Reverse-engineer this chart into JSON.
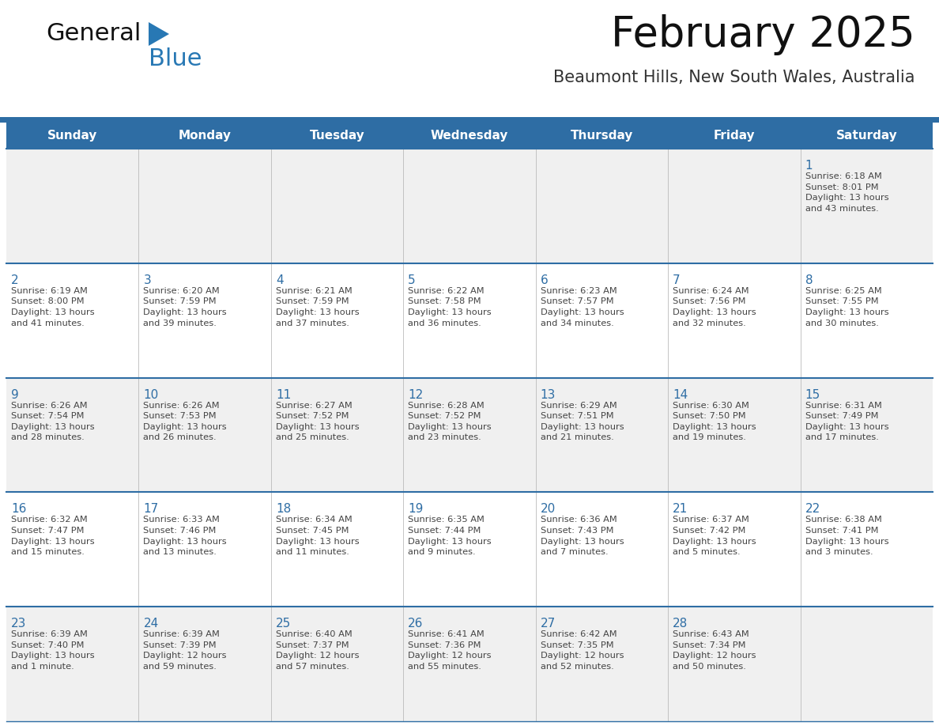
{
  "title": "February 2025",
  "subtitle": "Beaumont Hills, New South Wales, Australia",
  "header_bg_color": "#2E6DA4",
  "header_text_color": "#FFFFFF",
  "cell_bg_color_odd": "#F0F0F0",
  "cell_bg_color_even": "#FFFFFF",
  "day_names": [
    "Sunday",
    "Monday",
    "Tuesday",
    "Wednesday",
    "Thursday",
    "Friday",
    "Saturday"
  ],
  "title_color": "#111111",
  "subtitle_color": "#333333",
  "day_number_color": "#2E6DA4",
  "cell_text_color": "#444444",
  "divider_color": "#2E6DA4",
  "logo_black_color": "#111111",
  "logo_blue_color": "#2878B4",
  "weeks": [
    [
      {
        "day": 0,
        "text": ""
      },
      {
        "day": 0,
        "text": ""
      },
      {
        "day": 0,
        "text": ""
      },
      {
        "day": 0,
        "text": ""
      },
      {
        "day": 0,
        "text": ""
      },
      {
        "day": 0,
        "text": ""
      },
      {
        "day": 1,
        "text": "Sunrise: 6:18 AM\nSunset: 8:01 PM\nDaylight: 13 hours\nand 43 minutes."
      }
    ],
    [
      {
        "day": 2,
        "text": "Sunrise: 6:19 AM\nSunset: 8:00 PM\nDaylight: 13 hours\nand 41 minutes."
      },
      {
        "day": 3,
        "text": "Sunrise: 6:20 AM\nSunset: 7:59 PM\nDaylight: 13 hours\nand 39 minutes."
      },
      {
        "day": 4,
        "text": "Sunrise: 6:21 AM\nSunset: 7:59 PM\nDaylight: 13 hours\nand 37 minutes."
      },
      {
        "day": 5,
        "text": "Sunrise: 6:22 AM\nSunset: 7:58 PM\nDaylight: 13 hours\nand 36 minutes."
      },
      {
        "day": 6,
        "text": "Sunrise: 6:23 AM\nSunset: 7:57 PM\nDaylight: 13 hours\nand 34 minutes."
      },
      {
        "day": 7,
        "text": "Sunrise: 6:24 AM\nSunset: 7:56 PM\nDaylight: 13 hours\nand 32 minutes."
      },
      {
        "day": 8,
        "text": "Sunrise: 6:25 AM\nSunset: 7:55 PM\nDaylight: 13 hours\nand 30 minutes."
      }
    ],
    [
      {
        "day": 9,
        "text": "Sunrise: 6:26 AM\nSunset: 7:54 PM\nDaylight: 13 hours\nand 28 minutes."
      },
      {
        "day": 10,
        "text": "Sunrise: 6:26 AM\nSunset: 7:53 PM\nDaylight: 13 hours\nand 26 minutes."
      },
      {
        "day": 11,
        "text": "Sunrise: 6:27 AM\nSunset: 7:52 PM\nDaylight: 13 hours\nand 25 minutes."
      },
      {
        "day": 12,
        "text": "Sunrise: 6:28 AM\nSunset: 7:52 PM\nDaylight: 13 hours\nand 23 minutes."
      },
      {
        "day": 13,
        "text": "Sunrise: 6:29 AM\nSunset: 7:51 PM\nDaylight: 13 hours\nand 21 minutes."
      },
      {
        "day": 14,
        "text": "Sunrise: 6:30 AM\nSunset: 7:50 PM\nDaylight: 13 hours\nand 19 minutes."
      },
      {
        "day": 15,
        "text": "Sunrise: 6:31 AM\nSunset: 7:49 PM\nDaylight: 13 hours\nand 17 minutes."
      }
    ],
    [
      {
        "day": 16,
        "text": "Sunrise: 6:32 AM\nSunset: 7:47 PM\nDaylight: 13 hours\nand 15 minutes."
      },
      {
        "day": 17,
        "text": "Sunrise: 6:33 AM\nSunset: 7:46 PM\nDaylight: 13 hours\nand 13 minutes."
      },
      {
        "day": 18,
        "text": "Sunrise: 6:34 AM\nSunset: 7:45 PM\nDaylight: 13 hours\nand 11 minutes."
      },
      {
        "day": 19,
        "text": "Sunrise: 6:35 AM\nSunset: 7:44 PM\nDaylight: 13 hours\nand 9 minutes."
      },
      {
        "day": 20,
        "text": "Sunrise: 6:36 AM\nSunset: 7:43 PM\nDaylight: 13 hours\nand 7 minutes."
      },
      {
        "day": 21,
        "text": "Sunrise: 6:37 AM\nSunset: 7:42 PM\nDaylight: 13 hours\nand 5 minutes."
      },
      {
        "day": 22,
        "text": "Sunrise: 6:38 AM\nSunset: 7:41 PM\nDaylight: 13 hours\nand 3 minutes."
      }
    ],
    [
      {
        "day": 23,
        "text": "Sunrise: 6:39 AM\nSunset: 7:40 PM\nDaylight: 13 hours\nand 1 minute."
      },
      {
        "day": 24,
        "text": "Sunrise: 6:39 AM\nSunset: 7:39 PM\nDaylight: 12 hours\nand 59 minutes."
      },
      {
        "day": 25,
        "text": "Sunrise: 6:40 AM\nSunset: 7:37 PM\nDaylight: 12 hours\nand 57 minutes."
      },
      {
        "day": 26,
        "text": "Sunrise: 6:41 AM\nSunset: 7:36 PM\nDaylight: 12 hours\nand 55 minutes."
      },
      {
        "day": 27,
        "text": "Sunrise: 6:42 AM\nSunset: 7:35 PM\nDaylight: 12 hours\nand 52 minutes."
      },
      {
        "day": 28,
        "text": "Sunrise: 6:43 AM\nSunset: 7:34 PM\nDaylight: 12 hours\nand 50 minutes."
      },
      {
        "day": 0,
        "text": ""
      }
    ]
  ]
}
